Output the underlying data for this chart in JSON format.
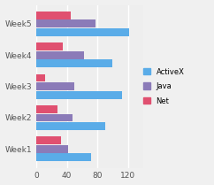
{
  "categories": [
    "Week1",
    "Week2",
    "Week3",
    "Week4",
    "Week5"
  ],
  "activex": [
    72,
    90,
    112,
    100,
    122
  ],
  "java": [
    42,
    48,
    50,
    62,
    78
  ],
  "net": [
    32,
    28,
    12,
    35,
    45
  ],
  "activex_color": "#5aace8",
  "java_color": "#8b7bb8",
  "net_color": "#e05070",
  "xlim": [
    0,
    140
  ],
  "xticks": [
    0,
    40,
    80,
    120
  ],
  "legend_labels": [
    "ActiveX",
    "Java",
    "Net"
  ],
  "background_color": "#eeeeee",
  "bar_height": 0.25
}
